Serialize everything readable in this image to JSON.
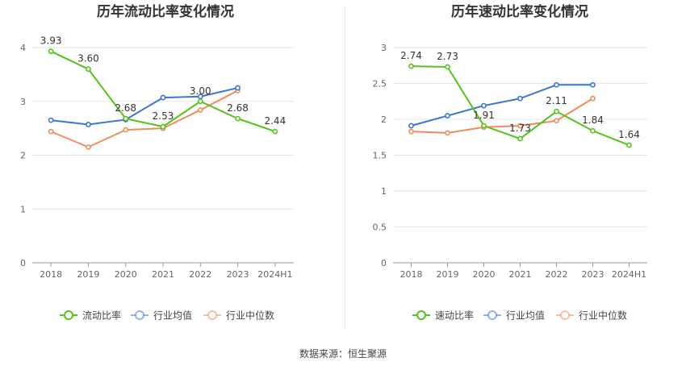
{
  "source_text": "数据来源：恒生聚源",
  "chart_data": [
    {
      "type": "line",
      "title": "历年流动比率变化情况",
      "categories": [
        "2018",
        "2019",
        "2020",
        "2021",
        "2022",
        "2023",
        "2024H1"
      ],
      "ylim": [
        0,
        4
      ],
      "yticks": [
        "0",
        "1",
        "2",
        "3",
        "4"
      ],
      "grid": true,
      "legend_position": "bottom",
      "series": [
        {
          "name": "流动比率",
          "color": "#52c41a",
          "values": [
            3.93,
            3.6,
            2.68,
            2.53,
            3.0,
            2.68,
            2.44
          ],
          "labels": [
            "3.93",
            "3.60",
            "2.68",
            "2.53",
            "3.00",
            "2.68",
            "2.44"
          ]
        },
        {
          "name": "行业均值",
          "color": "#3a75d6",
          "values": [
            2.65,
            2.57,
            2.66,
            3.07,
            3.09,
            3.25,
            null
          ]
        },
        {
          "name": "行业中位数",
          "color": "#f08c5a",
          "values": [
            2.44,
            2.15,
            2.47,
            2.5,
            2.84,
            3.2,
            null
          ]
        }
      ]
    },
    {
      "type": "line",
      "title": "历年速动比率变化情况",
      "categories": [
        "2018",
        "2019",
        "2020",
        "2021",
        "2022",
        "2023",
        "2024H1"
      ],
      "ylim": [
        0,
        3
      ],
      "yticks": [
        "0",
        "0.5",
        "1",
        "1.5",
        "2",
        "2.5",
        "3"
      ],
      "grid": true,
      "legend_position": "bottom",
      "series": [
        {
          "name": "速动比率",
          "color": "#52c41a",
          "values": [
            2.74,
            2.73,
            1.91,
            1.73,
            2.11,
            1.84,
            1.64
          ],
          "labels": [
            "2.74",
            "2.73",
            "1.91",
            "1.73",
            "2.11",
            "1.84",
            "1.64"
          ]
        },
        {
          "name": "行业均值",
          "color": "#3a75d6",
          "values": [
            1.91,
            2.05,
            2.19,
            2.29,
            2.48,
            2.48,
            null
          ]
        },
        {
          "name": "行业中位数",
          "color": "#f08c5a",
          "values": [
            1.83,
            1.81,
            1.89,
            1.91,
            1.98,
            2.29,
            null
          ]
        }
      ]
    }
  ]
}
